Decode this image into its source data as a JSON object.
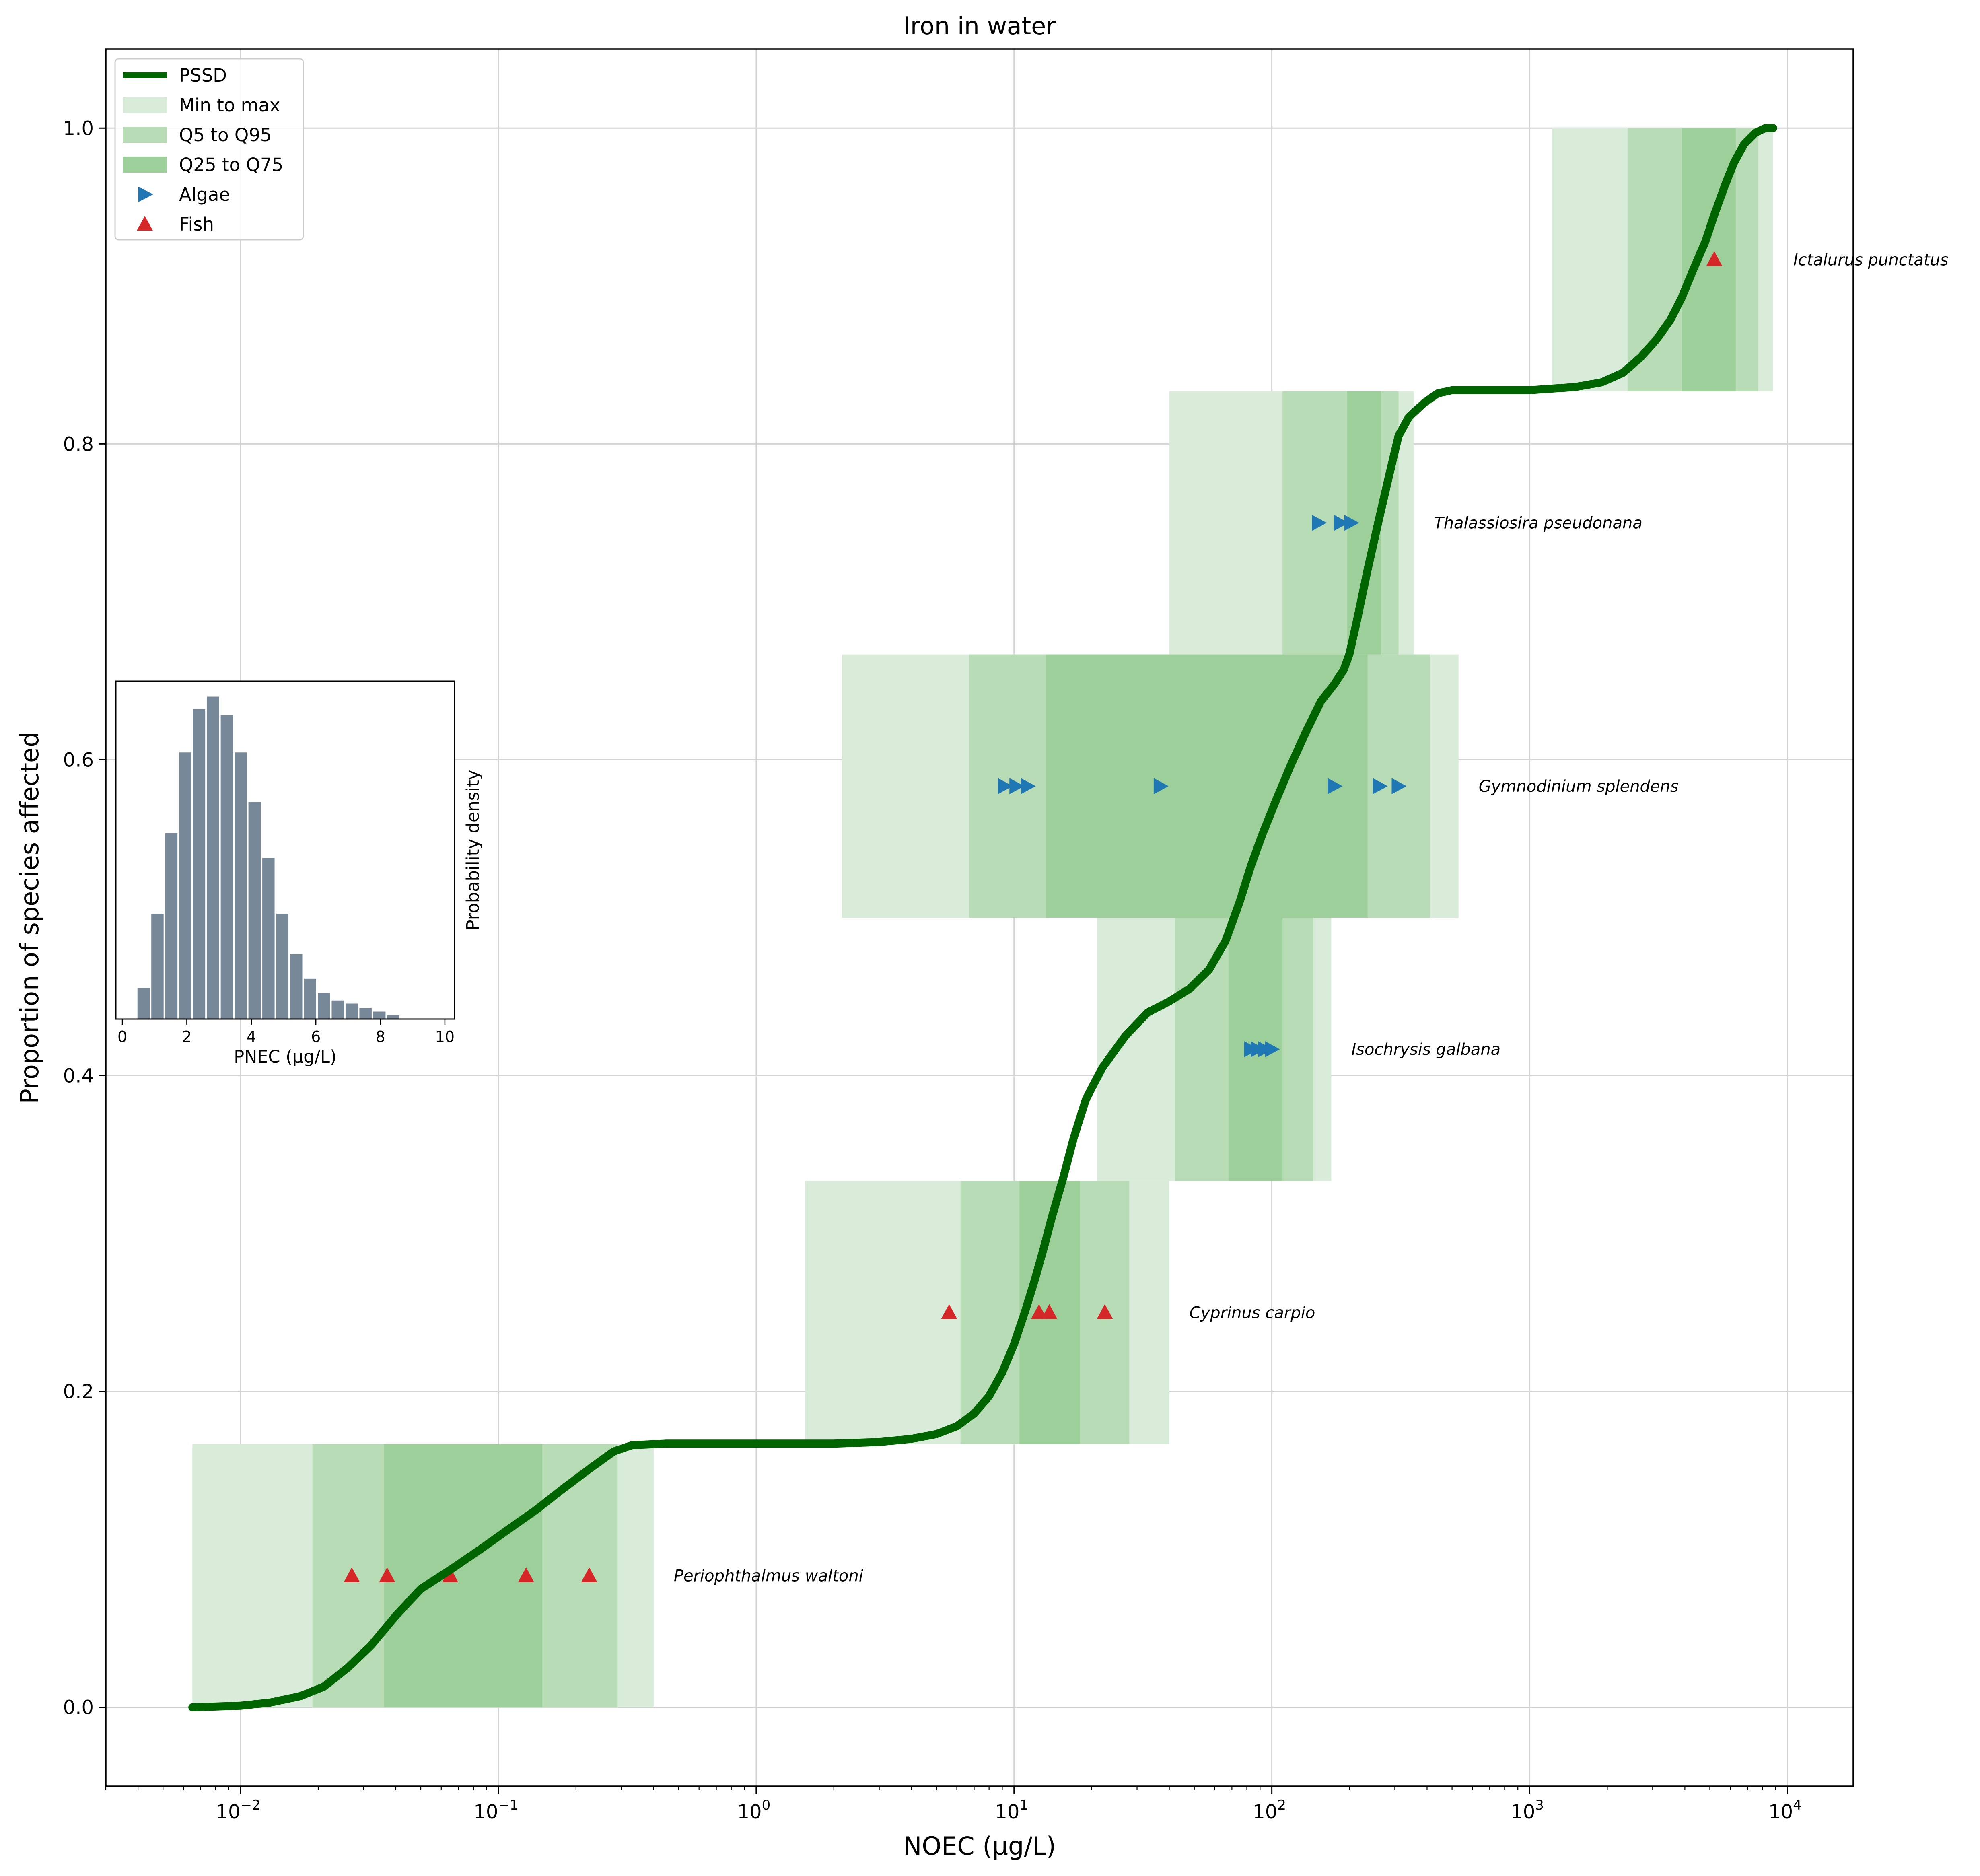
{
  "chart_data": {
    "type": "line",
    "title": "Iron in water",
    "xlabel": "NOEC (µg/L)",
    "ylabel": "Proportion of species affected",
    "xscale": "log",
    "xlim": [
      0.003,
      18000
    ],
    "ylim": [
      -0.05,
      1.05
    ],
    "grid": true,
    "legend_placement": "top-left",
    "x_ticks": [
      {
        "value": 0.01,
        "base": "10",
        "exp": "−2"
      },
      {
        "value": 0.1,
        "base": "10",
        "exp": "−1"
      },
      {
        "value": 1,
        "base": "10",
        "exp": "0"
      },
      {
        "value": 10,
        "base": "10",
        "exp": "1"
      },
      {
        "value": 100,
        "base": "10",
        "exp": "2"
      },
      {
        "value": 1000,
        "base": "10",
        "exp": "3"
      },
      {
        "value": 10000,
        "base": "10",
        "exp": "4"
      }
    ],
    "y_ticks": [
      {
        "value": 0.0,
        "label": "0.0"
      },
      {
        "value": 0.2,
        "label": "0.2"
      },
      {
        "value": 0.4,
        "label": "0.4"
      },
      {
        "value": 0.6,
        "label": "0.6"
      },
      {
        "value": 0.8,
        "label": "0.8"
      },
      {
        "value": 1.0,
        "label": "1.0"
      }
    ],
    "legend": [
      {
        "label": "PSSD",
        "kind": "line",
        "color": "#006400"
      },
      {
        "label": "Min to max",
        "kind": "patch",
        "color": "#d9ecd9"
      },
      {
        "label": "Q5 to Q95",
        "kind": "patch",
        "color": "#b7dcb6"
      },
      {
        "label": "Q25 to Q75",
        "kind": "patch",
        "color": "#9ccf99"
      },
      {
        "label": "Algae",
        "kind": "marker-right",
        "color": "#1f77b4"
      },
      {
        "label": "Fish",
        "kind": "marker-up",
        "color": "#d62728"
      }
    ],
    "colors": {
      "min_max": "#d9ecd9",
      "q5_q95": "#b7dcb6",
      "q25_q75": "#9ccf99",
      "pssd": "#006400",
      "algae": "#1f77b4",
      "fish": "#d62728",
      "inset_bar": "#778899"
    },
    "species": [
      {
        "name": "Periophthalmus waltoni",
        "group": "Fish",
        "y": 0.0833,
        "y0": 0.0,
        "y1": 0.1667,
        "min_max": [
          0.0065,
          0.4
        ],
        "q5_q95": [
          0.019,
          0.29
        ],
        "q25_q75": [
          0.036,
          0.148
        ],
        "points": [
          0.027,
          0.037,
          0.065,
          0.128,
          0.225
        ]
      },
      {
        "name": "Cyprinus carpio",
        "group": "Fish",
        "y": 0.25,
        "y0": 0.1667,
        "y1": 0.3333,
        "min_max": [
          1.55,
          40
        ],
        "q5_q95": [
          6.2,
          28
        ],
        "q25_q75": [
          10.5,
          18
        ],
        "points": [
          5.6,
          12.5,
          13.7,
          22.5
        ]
      },
      {
        "name": "Isochrysis galbana",
        "group": "Algae",
        "y": 0.4167,
        "y0": 0.3333,
        "y1": 0.5,
        "min_max": [
          21,
          170
        ],
        "q5_q95": [
          42,
          145
        ],
        "q25_q75": [
          68,
          110
        ],
        "points": [
          83,
          88,
          94,
          100
        ]
      },
      {
        "name": "Gymnodinium splendens",
        "group": "Algae",
        "y": 0.5833,
        "y0": 0.5,
        "y1": 0.6667,
        "min_max": [
          2.15,
          530
        ],
        "q5_q95": [
          6.7,
          410
        ],
        "q25_q75": [
          13.3,
          235
        ],
        "points": [
          9.2,
          10.2,
          11.3,
          37,
          175,
          262,
          310
        ]
      },
      {
        "name": "Thalassiosira pseudonana",
        "group": "Algae",
        "y": 0.75,
        "y0": 0.6667,
        "y1": 0.8333,
        "min_max": [
          40,
          355
        ],
        "q5_q95": [
          110,
          310
        ],
        "q25_q75": [
          196,
          265
        ],
        "points": [
          152,
          185,
          203
        ]
      },
      {
        "name": "Ictalurus punctatus",
        "group": "Fish",
        "y": 0.9167,
        "y0": 0.8333,
        "y1": 1.0,
        "min_max": [
          1220,
          8800
        ],
        "q5_q95": [
          2400,
          7700
        ],
        "q25_q75": [
          3900,
          6300
        ],
        "points": [
          5200
        ]
      }
    ],
    "pssd_curve": [
      [
        0.0065,
        0.0
      ],
      [
        0.01,
        0.001
      ],
      [
        0.013,
        0.003
      ],
      [
        0.017,
        0.007
      ],
      [
        0.021,
        0.013
      ],
      [
        0.026,
        0.025
      ],
      [
        0.032,
        0.039
      ],
      [
        0.04,
        0.058
      ],
      [
        0.05,
        0.075
      ],
      [
        0.065,
        0.087
      ],
      [
        0.085,
        0.1
      ],
      [
        0.11,
        0.113
      ],
      [
        0.14,
        0.125
      ],
      [
        0.18,
        0.139
      ],
      [
        0.23,
        0.152
      ],
      [
        0.28,
        0.162
      ],
      [
        0.33,
        0.166
      ],
      [
        0.45,
        0.167
      ],
      [
        1.0,
        0.167
      ],
      [
        2.0,
        0.167
      ],
      [
        3.0,
        0.168
      ],
      [
        4.0,
        0.17
      ],
      [
        5.0,
        0.173
      ],
      [
        6.0,
        0.178
      ],
      [
        7.0,
        0.186
      ],
      [
        8.0,
        0.197
      ],
      [
        9.0,
        0.212
      ],
      [
        10.0,
        0.23
      ],
      [
        11.0,
        0.25
      ],
      [
        12.0,
        0.27
      ],
      [
        13.0,
        0.29
      ],
      [
        14.0,
        0.31
      ],
      [
        15.5,
        0.335
      ],
      [
        17.0,
        0.36
      ],
      [
        19.0,
        0.385
      ],
      [
        22.0,
        0.405
      ],
      [
        27.0,
        0.425
      ],
      [
        33.0,
        0.44
      ],
      [
        40.0,
        0.447
      ],
      [
        48.0,
        0.455
      ],
      [
        57.0,
        0.467
      ],
      [
        66.0,
        0.485
      ],
      [
        75.0,
        0.51
      ],
      [
        83.0,
        0.533
      ],
      [
        92.0,
        0.553
      ],
      [
        103.0,
        0.573
      ],
      [
        118.0,
        0.596
      ],
      [
        135.0,
        0.617
      ],
      [
        155.0,
        0.637
      ],
      [
        175.0,
        0.648
      ],
      [
        190.0,
        0.657
      ],
      [
        200.0,
        0.667
      ],
      [
        215.0,
        0.69
      ],
      [
        235.0,
        0.72
      ],
      [
        260.0,
        0.752
      ],
      [
        285.0,
        0.78
      ],
      [
        310.0,
        0.805
      ],
      [
        340.0,
        0.817
      ],
      [
        390.0,
        0.826
      ],
      [
        440.0,
        0.832
      ],
      [
        500.0,
        0.834
      ],
      [
        1000.0,
        0.834
      ],
      [
        1500.0,
        0.836
      ],
      [
        1900.0,
        0.839
      ],
      [
        2300.0,
        0.845
      ],
      [
        2700.0,
        0.855
      ],
      [
        3100.0,
        0.866
      ],
      [
        3500.0,
        0.878
      ],
      [
        3900.0,
        0.893
      ],
      [
        4300.0,
        0.91
      ],
      [
        4800.0,
        0.928
      ],
      [
        5200.0,
        0.945
      ],
      [
        5700.0,
        0.963
      ],
      [
        6200.0,
        0.978
      ],
      [
        6800.0,
        0.99
      ],
      [
        7500.0,
        0.997
      ],
      [
        8200.0,
        1.0
      ],
      [
        8800.0,
        1.0
      ]
    ],
    "inset": {
      "type": "bar",
      "xlabel": "PNEC (µg/L)",
      "ylabel": "Probability density",
      "xlim": [
        -0.2,
        10.3
      ],
      "x_ticks": [
        0,
        2,
        4,
        6,
        8,
        10
      ],
      "bin_width": 0.43,
      "bins": [
        {
          "x": 0.66,
          "h": 0.05
        },
        {
          "x": 1.09,
          "h": 0.17
        },
        {
          "x": 1.52,
          "h": 0.3
        },
        {
          "x": 1.95,
          "h": 0.43
        },
        {
          "x": 2.38,
          "h": 0.5
        },
        {
          "x": 2.81,
          "h": 0.52
        },
        {
          "x": 3.24,
          "h": 0.49
        },
        {
          "x": 3.67,
          "h": 0.43
        },
        {
          "x": 4.1,
          "h": 0.35
        },
        {
          "x": 4.53,
          "h": 0.26
        },
        {
          "x": 4.96,
          "h": 0.17
        },
        {
          "x": 5.39,
          "h": 0.105
        },
        {
          "x": 5.82,
          "h": 0.065
        },
        {
          "x": 6.25,
          "h": 0.042
        },
        {
          "x": 6.68,
          "h": 0.03
        },
        {
          "x": 7.11,
          "h": 0.025
        },
        {
          "x": 7.54,
          "h": 0.018
        },
        {
          "x": 7.97,
          "h": 0.012
        },
        {
          "x": 8.4,
          "h": 0.006
        }
      ]
    }
  }
}
